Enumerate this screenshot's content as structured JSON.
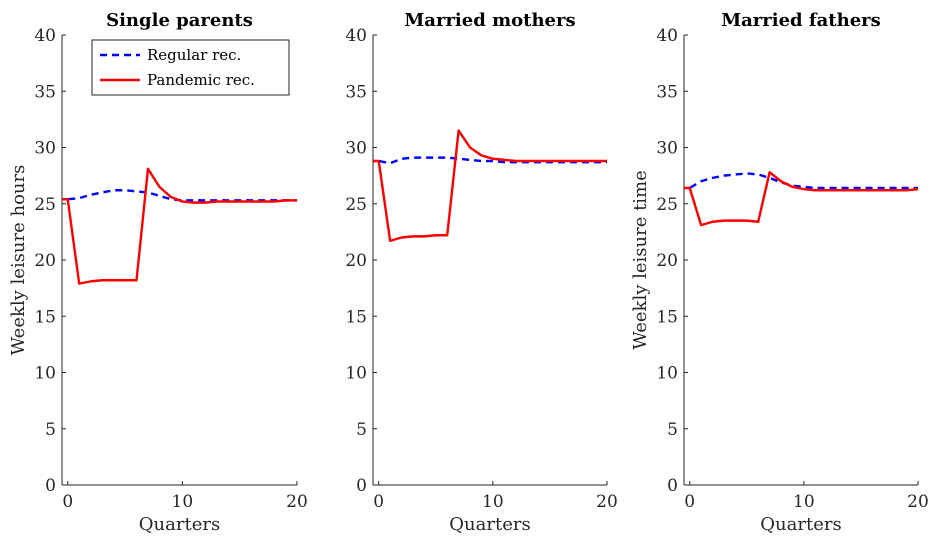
{
  "chart_data": [
    {
      "type": "line",
      "title": "Single parents",
      "xlabel": "Quarters",
      "ylabel": "Weekly leisure hours",
      "xlim": [
        -0.5,
        20
      ],
      "ylim": [
        0,
        40
      ],
      "xticks": [
        0,
        10,
        20
      ],
      "yticks": [
        0,
        5,
        10,
        15,
        20,
        25,
        30,
        35,
        40
      ],
      "legend": {
        "placement": "top-right",
        "entries": [
          "Regular rec.",
          "Pandemic rec."
        ]
      },
      "series": [
        {
          "name": "Regular rec.",
          "color": "#0000ff",
          "style": "dashed",
          "x": [
            -1,
            0,
            1,
            2,
            3,
            4,
            5,
            6,
            7,
            8,
            9,
            10,
            11,
            12,
            13,
            14,
            15,
            16,
            17,
            18,
            19,
            20
          ],
          "y": [
            25.4,
            25.4,
            25.5,
            25.8,
            26.0,
            26.2,
            26.2,
            26.1,
            26.0,
            25.7,
            25.4,
            25.3,
            25.3,
            25.3,
            25.3,
            25.3,
            25.3,
            25.3,
            25.3,
            25.3,
            25.3,
            25.3
          ]
        },
        {
          "name": "Pandemic rec.",
          "color": "#ff0000",
          "style": "solid",
          "x": [
            -1,
            0,
            1,
            2,
            3,
            4,
            5,
            6,
            7,
            8,
            9,
            10,
            11,
            12,
            13,
            14,
            15,
            16,
            17,
            18,
            19,
            20
          ],
          "y": [
            25.4,
            25.4,
            17.9,
            18.1,
            18.2,
            18.2,
            18.2,
            18.2,
            28.1,
            26.5,
            25.6,
            25.2,
            25.1,
            25.1,
            25.2,
            25.2,
            25.2,
            25.2,
            25.2,
            25.2,
            25.3,
            25.3
          ]
        }
      ]
    },
    {
      "type": "line",
      "title": "Married mothers",
      "xlabel": "Quarters",
      "ylabel": "",
      "xlim": [
        -0.5,
        20
      ],
      "ylim": [
        0,
        40
      ],
      "xticks": [
        0,
        10,
        20
      ],
      "yticks": [
        0,
        5,
        10,
        15,
        20,
        25,
        30,
        35,
        40
      ],
      "series": [
        {
          "name": "Regular rec.",
          "color": "#0000ff",
          "style": "dashed",
          "x": [
            -1,
            0,
            1,
            2,
            3,
            4,
            5,
            6,
            7,
            8,
            9,
            10,
            11,
            12,
            13,
            14,
            15,
            16,
            17,
            18,
            19,
            20
          ],
          "y": [
            28.8,
            28.8,
            28.6,
            29.0,
            29.1,
            29.1,
            29.1,
            29.1,
            29.0,
            28.9,
            28.8,
            28.8,
            28.7,
            28.7,
            28.7,
            28.7,
            28.7,
            28.7,
            28.7,
            28.7,
            28.7,
            28.7
          ]
        },
        {
          "name": "Pandemic rec.",
          "color": "#ff0000",
          "style": "solid",
          "x": [
            -1,
            0,
            1,
            2,
            3,
            4,
            5,
            6,
            7,
            8,
            9,
            10,
            11,
            12,
            13,
            14,
            15,
            16,
            17,
            18,
            19,
            20
          ],
          "y": [
            28.8,
            28.8,
            21.7,
            22.0,
            22.1,
            22.1,
            22.2,
            22.2,
            31.5,
            30.0,
            29.3,
            29.0,
            28.9,
            28.8,
            28.8,
            28.8,
            28.8,
            28.8,
            28.8,
            28.8,
            28.8,
            28.8
          ]
        }
      ]
    },
    {
      "type": "line",
      "title": "Married fathers",
      "xlabel": "Quarters",
      "ylabel": "Weekly leisure time",
      "xlim": [
        -0.5,
        20
      ],
      "ylim": [
        0,
        40
      ],
      "xticks": [
        0,
        10,
        20
      ],
      "yticks": [
        0,
        5,
        10,
        15,
        20,
        25,
        30,
        35,
        40
      ],
      "series": [
        {
          "name": "Regular rec.",
          "color": "#0000ff",
          "style": "dashed",
          "x": [
            -1,
            0,
            1,
            2,
            3,
            4,
            5,
            6,
            7,
            8,
            9,
            10,
            11,
            12,
            13,
            14,
            15,
            16,
            17,
            18,
            19,
            20
          ],
          "y": [
            26.4,
            26.4,
            27.0,
            27.3,
            27.5,
            27.6,
            27.7,
            27.6,
            27.3,
            26.9,
            26.6,
            26.5,
            26.4,
            26.4,
            26.4,
            26.4,
            26.4,
            26.4,
            26.4,
            26.4,
            26.4,
            26.4
          ]
        },
        {
          "name": "Pandemic rec.",
          "color": "#ff0000",
          "style": "solid",
          "x": [
            -1,
            0,
            1,
            2,
            3,
            4,
            5,
            6,
            7,
            8,
            9,
            10,
            11,
            12,
            13,
            14,
            15,
            16,
            17,
            18,
            19,
            20
          ],
          "y": [
            26.4,
            26.4,
            23.1,
            23.4,
            23.5,
            23.5,
            23.5,
            23.4,
            27.8,
            27.0,
            26.5,
            26.3,
            26.2,
            26.2,
            26.2,
            26.2,
            26.2,
            26.2,
            26.2,
            26.2,
            26.2,
            26.3
          ]
        }
      ]
    }
  ]
}
